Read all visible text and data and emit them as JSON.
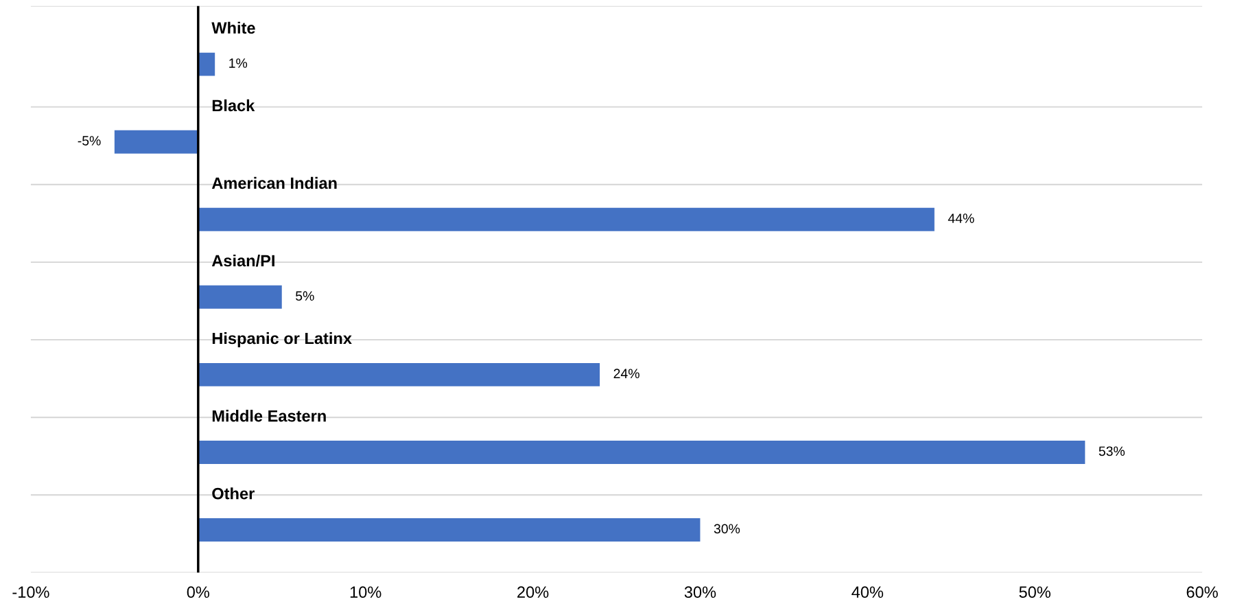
{
  "chart_data": {
    "type": "bar",
    "orientation": "horizontal",
    "categories": [
      "White",
      "Black",
      "American Indian",
      "Asian/PI",
      "Hispanic or Latinx",
      "Middle Eastern",
      "Other"
    ],
    "values": [
      1,
      -5,
      44,
      5,
      24,
      53,
      30
    ],
    "color": "#4472c4",
    "value_labels": [
      "1%",
      "-5%",
      "44%",
      "5%",
      "24%",
      "53%",
      "30%"
    ],
    "xlim": [
      -10,
      60
    ],
    "xticks": [
      {
        "value": -10,
        "label": "-10%"
      },
      {
        "value": 0,
        "label": "0%"
      },
      {
        "value": 10,
        "label": "10%"
      },
      {
        "value": 20,
        "label": "20%"
      },
      {
        "value": 30,
        "label": "30%"
      },
      {
        "value": 40,
        "label": "40%"
      },
      {
        "value": 50,
        "label": "50%"
      },
      {
        "value": 60,
        "label": "60%"
      }
    ],
    "tick_labels": "x",
    "grid": "y"
  }
}
